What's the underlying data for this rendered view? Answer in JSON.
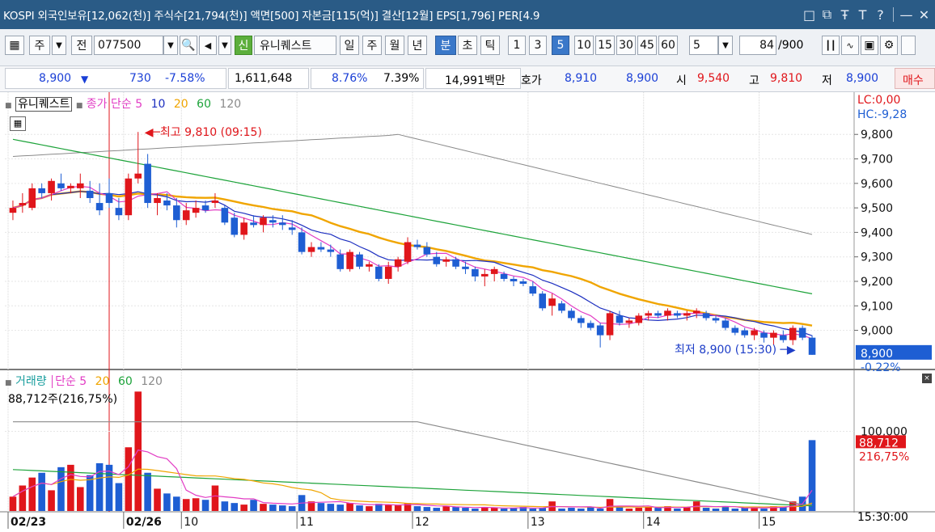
{
  "titlebar": {
    "text": "KOSPI 외국인보유[12,062(천)] 주식수[21,794(천)] 액면[500] 자본금[115(억)] 결산[12월] EPS[1,796] PER[4.9",
    "icons": [
      "restore-icon",
      "copy-icon",
      "pin-icon",
      "font-icon",
      "help-icon",
      "minimize-icon",
      "close-icon"
    ],
    "icon_glyphs": [
      "□",
      "⧉",
      "Ŧ",
      "T",
      "?",
      "—",
      "✕"
    ]
  },
  "toolbar": {
    "type_main": "주",
    "type_all": "전",
    "code": "077500",
    "new_badge": "신",
    "stock_name": "유니퀘스트",
    "periods": [
      "일",
      "주",
      "월",
      "년",
      "분",
      "초",
      "틱"
    ],
    "period_selected": "분",
    "intervals": [
      "1",
      "3",
      "5",
      "10",
      "15",
      "30",
      "45",
      "60"
    ],
    "interval_selected": "5",
    "unit_value": "5",
    "count_value": "84",
    "count_total": "/900"
  },
  "quote": {
    "price": "8,900",
    "change_arrow": "▼",
    "change": "730",
    "change_rate": "-7.58%",
    "volume": "1,611,648",
    "turnover_pct": "8.76%",
    "ratio_pct": "7.39%",
    "amount": "14,991백만",
    "hoga_label": "호가",
    "ask": "8,910",
    "bid": "8,900",
    "open_label": "시",
    "open": "9,540",
    "high_label": "고",
    "high": "9,810",
    "low_label": "저",
    "low": "8,900",
    "trade_button": "매수"
  },
  "price_panel": {
    "stock_label": "유니퀘스트",
    "ma_label": "종가 단순",
    "ma_periods": [
      "5",
      "10",
      "20",
      "60",
      "120"
    ],
    "lc": "LC:0,00",
    "hc": "HC:-9,28",
    "y_ticks": [
      "9,800",
      "9,700",
      "9,600",
      "9,500",
      "9,400",
      "9,300",
      "9,200",
      "9,100",
      "9,000"
    ],
    "high_annotation": "최고 9,810 (09:15)",
    "low_annotation": "최저 8,900 (15:30)",
    "current_price": "8,900",
    "current_pct": "-0.22%"
  },
  "volume_panel": {
    "label": "거래량",
    "ma_label": "단순",
    "ma_periods": [
      "5",
      "20",
      "60",
      "120"
    ],
    "readout": "88,712주(216,75%)",
    "y_tick": "100,000",
    "current": "88,712",
    "current_pct": "216,75%"
  },
  "x_axis": {
    "labels": [
      "02/23",
      "02/26",
      "10",
      "11",
      "12",
      "13",
      "14",
      "15"
    ],
    "time": "15:30:00"
  },
  "colors": {
    "up": "#e0161b",
    "down": "#1e5ed3",
    "ma5": "#e23cc4",
    "ma10": "#1d2fc0",
    "ma20": "#f0a500",
    "ma60": "#1da33a",
    "ma120": "#8a8a8a",
    "titlebar": "#2a5b86"
  },
  "chart_data": {
    "type": "candlestick",
    "y_range": [
      8850,
      9880
    ],
    "candles": [
      [
        9480,
        9530,
        9450,
        9500
      ],
      [
        9510,
        9560,
        9480,
        9520
      ],
      [
        9500,
        9600,
        9490,
        9580
      ],
      [
        9580,
        9600,
        9540,
        9560
      ],
      [
        9560,
        9620,
        9530,
        9610
      ],
      [
        9600,
        9640,
        9570,
        9580
      ],
      [
        9580,
        9600,
        9560,
        9590
      ],
      [
        9580,
        9640,
        9540,
        9600
      ],
      [
        9570,
        9610,
        9520,
        9540
      ],
      [
        9520,
        9600,
        9470,
        9490
      ],
      [
        9560,
        9620,
        9500,
        9520
      ],
      [
        9500,
        9540,
        9450,
        9470
      ],
      [
        9470,
        9640,
        9450,
        9620
      ],
      [
        9620,
        9810,
        9600,
        9640
      ],
      [
        9680,
        9720,
        9500,
        9520
      ],
      [
        9520,
        9560,
        9470,
        9540
      ],
      [
        9530,
        9560,
        9490,
        9510
      ],
      [
        9510,
        9540,
        9420,
        9450
      ],
      [
        9450,
        9520,
        9430,
        9490
      ],
      [
        9480,
        9530,
        9460,
        9500
      ],
      [
        9510,
        9530,
        9480,
        9490
      ],
      [
        9520,
        9560,
        9500,
        9530
      ],
      [
        9500,
        9510,
        9430,
        9440
      ],
      [
        9460,
        9480,
        9380,
        9390
      ],
      [
        9390,
        9460,
        9370,
        9440
      ],
      [
        9440,
        9470,
        9420,
        9430
      ],
      [
        9430,
        9470,
        9400,
        9460
      ],
      [
        9450,
        9470,
        9420,
        9440
      ],
      [
        9440,
        9470,
        9410,
        9430
      ],
      [
        9420,
        9450,
        9390,
        9410
      ],
      [
        9400,
        9420,
        9310,
        9320
      ],
      [
        9320,
        9360,
        9300,
        9340
      ],
      [
        9340,
        9360,
        9320,
        9330
      ],
      [
        9330,
        9350,
        9300,
        9320
      ],
      [
        9310,
        9330,
        9240,
        9250
      ],
      [
        9250,
        9330,
        9240,
        9320
      ],
      [
        9310,
        9320,
        9250,
        9260
      ],
      [
        9260,
        9280,
        9240,
        9270
      ],
      [
        9260,
        9270,
        9200,
        9210
      ],
      [
        9210,
        9280,
        9190,
        9260
      ],
      [
        9260,
        9300,
        9240,
        9290
      ],
      [
        9280,
        9380,
        9270,
        9360
      ],
      [
        9350,
        9370,
        9330,
        9340
      ],
      [
        9340,
        9360,
        9300,
        9310
      ],
      [
        9300,
        9320,
        9260,
        9270
      ],
      [
        9280,
        9300,
        9260,
        9290
      ],
      [
        9290,
        9300,
        9250,
        9260
      ],
      [
        9260,
        9280,
        9230,
        9250
      ],
      [
        9250,
        9260,
        9200,
        9220
      ],
      [
        9220,
        9250,
        9180,
        9230
      ],
      [
        9230,
        9260,
        9200,
        9250
      ],
      [
        9230,
        9240,
        9200,
        9210
      ],
      [
        9210,
        9220,
        9180,
        9200
      ],
      [
        9200,
        9210,
        9180,
        9190
      ],
      [
        9180,
        9200,
        9140,
        9150
      ],
      [
        9150,
        9160,
        9080,
        9090
      ],
      [
        9100,
        9150,
        9060,
        9130
      ],
      [
        9110,
        9120,
        9070,
        9080
      ],
      [
        9080,
        9090,
        9040,
        9050
      ],
      [
        9050,
        9060,
        9010,
        9030
      ],
      [
        9030,
        9040,
        9000,
        9010
      ],
      [
        9020,
        9030,
        8930,
        8980
      ],
      [
        8980,
        9080,
        8960,
        9070
      ],
      [
        9060,
        9080,
        9020,
        9030
      ],
      [
        9030,
        9050,
        9010,
        9040
      ],
      [
        9030,
        9070,
        9020,
        9060
      ],
      [
        9060,
        9080,
        9040,
        9070
      ],
      [
        9070,
        9080,
        9050,
        9060
      ],
      [
        9060,
        9090,
        9040,
        9080
      ],
      [
        9070,
        9080,
        9050,
        9060
      ],
      [
        9060,
        9080,
        9040,
        9070
      ],
      [
        9070,
        9090,
        9050,
        9080
      ],
      [
        9070,
        9080,
        9040,
        9050
      ],
      [
        9050,
        9060,
        9030,
        9040
      ],
      [
        9040,
        9050,
        9000,
        9010
      ],
      [
        9010,
        9020,
        8980,
        8990
      ],
      [
        9000,
        9010,
        8970,
        8980
      ],
      [
        8980,
        9010,
        8960,
        9000
      ],
      [
        8990,
        9000,
        8950,
        8970
      ],
      [
        8970,
        9000,
        8940,
        8990
      ],
      [
        8980,
        9000,
        8950,
        8960
      ],
      [
        8960,
        9020,
        8940,
        9010
      ],
      [
        9010,
        9020,
        8960,
        8970
      ],
      [
        8970,
        8980,
        8900,
        8900
      ]
    ],
    "volume": [
      18,
      32,
      42,
      48,
      26,
      55,
      58,
      30,
      45,
      60,
      58,
      35,
      80,
      150,
      48,
      28,
      22,
      18,
      15,
      16,
      14,
      32,
      12,
      10,
      8,
      14,
      9,
      8,
      7,
      6,
      20,
      12,
      10,
      9,
      8,
      10,
      7,
      6,
      9,
      8,
      7,
      10,
      6,
      5,
      4,
      6,
      5,
      4,
      3,
      5,
      4,
      3,
      4,
      5,
      3,
      4,
      12,
      3,
      4,
      3,
      5,
      3,
      15,
      5,
      3,
      4,
      5,
      4,
      6,
      3,
      5,
      12,
      4,
      3,
      5,
      3,
      4,
      5,
      3,
      6,
      5,
      12,
      18,
      89
    ],
    "vol_y_range": [
      0,
      130
    ]
  }
}
